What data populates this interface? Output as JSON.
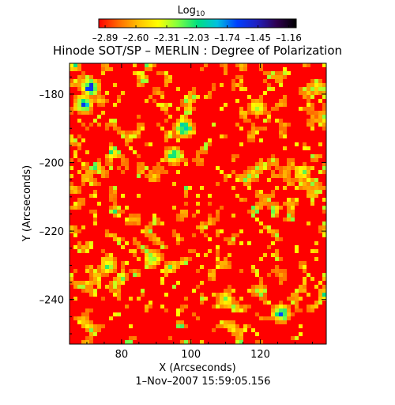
{
  "chart_data": {
    "type": "heatmap",
    "title": "Hinode SOT/SP – MERLIN : Degree of Polarization",
    "xlabel": "X (Arcseconds)",
    "ylabel": "Y (Arcseconds)",
    "timestamp": "1–Nov–2007  15:59:05.156",
    "xlim": [
      65,
      139
    ],
    "ylim": [
      -253,
      -171
    ],
    "x_ticks": [
      80,
      100,
      120
    ],
    "x_tick_labels": [
      "80",
      "100",
      "120"
    ],
    "y_ticks": [
      -180,
      -200,
      -220,
      -240
    ],
    "y_tick_labels": [
      "–180",
      "–200",
      "–220",
      "–240"
    ],
    "grid": false,
    "colorbar": {
      "label_base": "Log",
      "label_sub": "10",
      "range": [
        -2.95,
        -1.09
      ],
      "tick_values": [
        -2.89,
        -2.6,
        -2.31,
        -2.03,
        -1.74,
        -1.45,
        -1.16
      ],
      "tick_labels": [
        "–2.89",
        "–2.60",
        "–2.31",
        "–2.03",
        "–1.74",
        "–1.45",
        "–1.16"
      ],
      "colors": [
        "#ff0000",
        "#ff6a00",
        "#ffc000",
        "#ffff00",
        "#80ff40",
        "#00e080",
        "#00c0e0",
        "#0040ff",
        "#2020c0",
        "#300050",
        "#000000"
      ]
    },
    "field": {
      "background_value": -2.89,
      "low_polarization_regions": [
        {
          "x": 71,
          "y": -178,
          "value": -1.4
        },
        {
          "x": 69,
          "y": -183,
          "value": -1.6
        },
        {
          "x": 98,
          "y": -190,
          "value": -1.5
        },
        {
          "x": 95,
          "y": -198,
          "value": -1.9
        },
        {
          "x": 126,
          "y": -244,
          "value": -1.6
        },
        {
          "x": 76,
          "y": -230,
          "value": -2.1
        },
        {
          "x": 89,
          "y": -228,
          "value": -2.0
        },
        {
          "x": 132,
          "y": -203,
          "value": -2.1
        },
        {
          "x": 110,
          "y": -240,
          "value": -2.2
        },
        {
          "x": 119,
          "y": -184,
          "value": -2.2
        }
      ]
    }
  }
}
